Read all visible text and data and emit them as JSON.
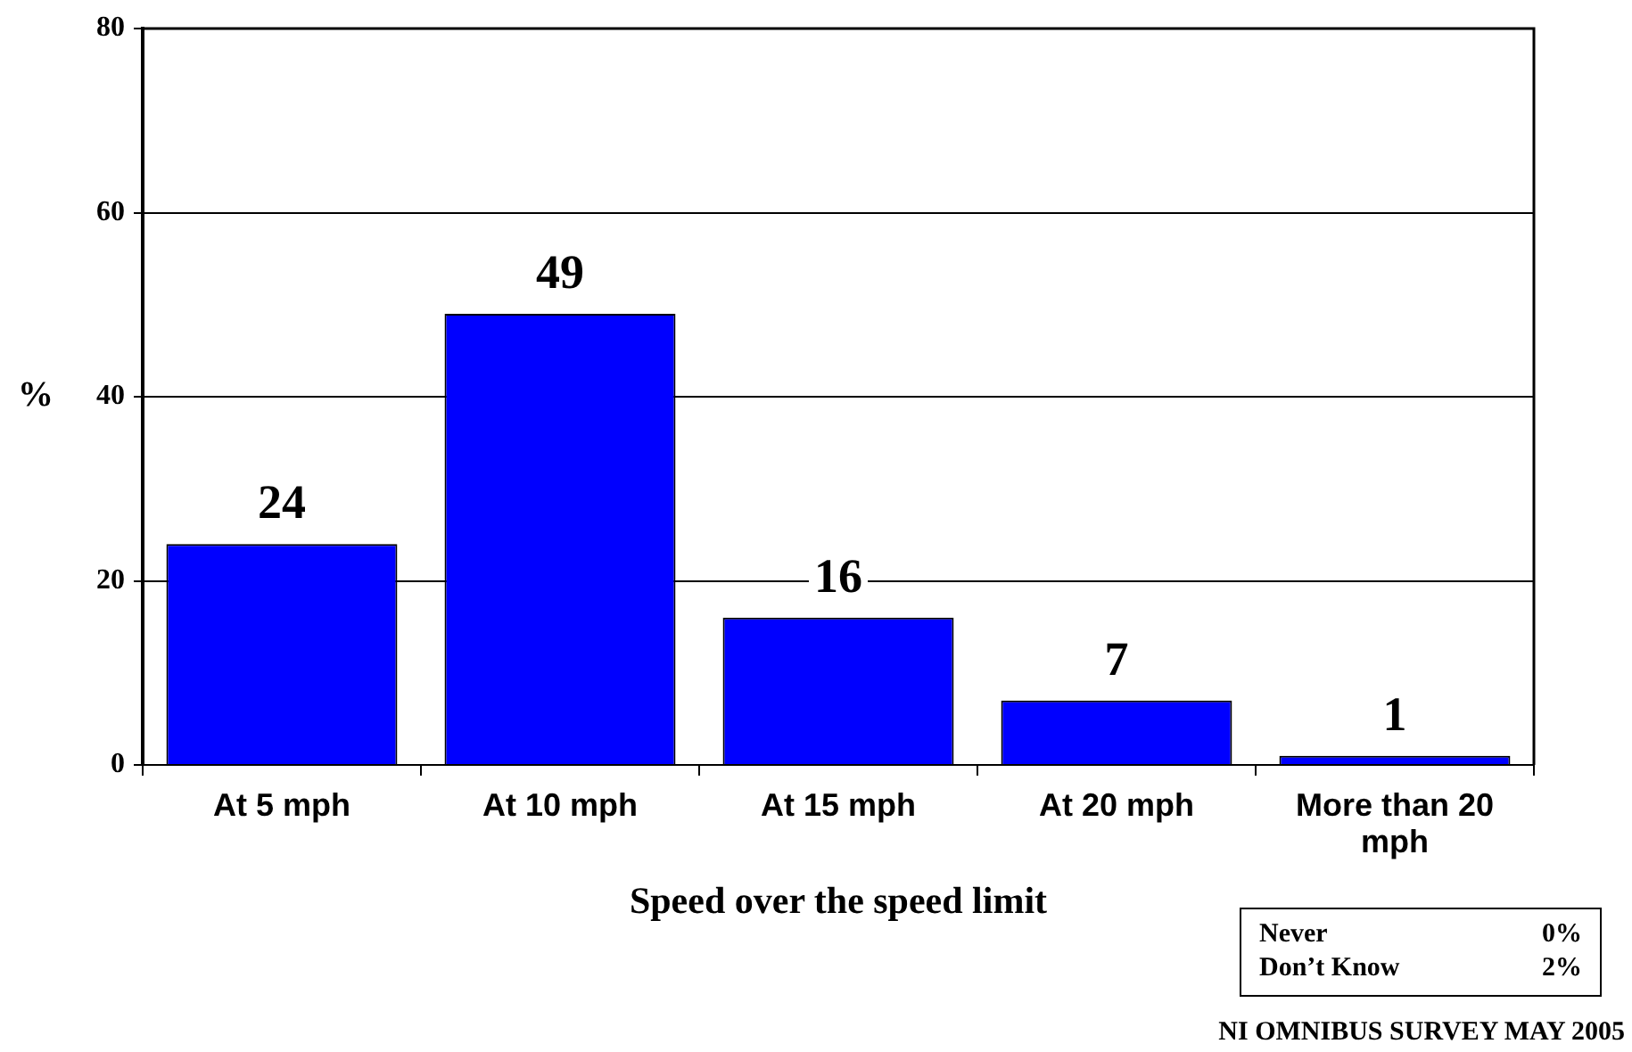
{
  "chart_data": {
    "type": "bar",
    "categories": [
      "At 5 mph",
      "At 10 mph",
      "At 15 mph",
      "At 20 mph",
      "More than 20 mph"
    ],
    "values": [
      24,
      49,
      16,
      7,
      1
    ],
    "color": "#0000ff",
    "ylim": [
      0,
      80
    ],
    "yticks": [
      0,
      20,
      40,
      60,
      80
    ],
    "ylabel": "%",
    "xlabel": "Speed over the speed limit",
    "grid": "y",
    "legend": false,
    "data_labels": true,
    "annotations": [
      "Never 0%",
      "Don’t Know 2%",
      "NI OMNIBUS SURVEY MAY 2005"
    ]
  }
}
